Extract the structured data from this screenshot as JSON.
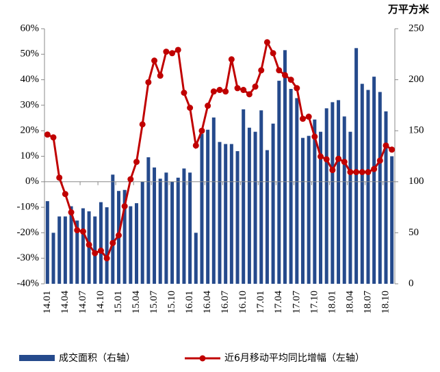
{
  "chart_data": {
    "type": "bar-line",
    "y2_unit": "万平方米",
    "categories": [
      "14.01",
      null,
      null,
      "14.04",
      null,
      null,
      "14.07",
      null,
      null,
      "14.10",
      null,
      null,
      "15.01",
      null,
      null,
      "15.04",
      null,
      null,
      "15.07",
      null,
      null,
      "15.10",
      null,
      null,
      "16.01",
      null,
      null,
      "16.04",
      null,
      null,
      "16.07",
      null,
      null,
      "16.10",
      null,
      null,
      "17.01",
      null,
      null,
      "17.04",
      null,
      null,
      "17.07",
      null,
      null,
      "17.10",
      null,
      null,
      "18.01",
      null,
      null,
      "18.04",
      null,
      null,
      "18.07",
      null,
      null,
      "18.10",
      null
    ],
    "series": [
      {
        "name": "成交面积（右轴）",
        "type": "bar",
        "axis": "y2",
        "color": "#254a8c",
        "values": [
          81,
          50,
          66,
          66,
          76,
          62,
          74,
          71,
          66,
          80,
          75,
          107,
          91,
          92,
          76,
          79,
          100,
          124,
          114,
          103,
          109,
          100,
          104,
          113,
          109,
          50,
          147,
          151,
          163,
          139,
          137,
          137,
          130,
          171,
          153,
          149,
          170,
          131,
          157,
          199,
          229,
          191,
          182,
          143,
          145,
          161,
          149,
          172,
          178,
          180,
          164,
          149,
          231,
          196,
          190,
          203,
          188,
          169,
          125
        ]
      },
      {
        "name": "近6月移动平均同比增幅（左轴）",
        "type": "line",
        "axis": "y",
        "color": "#c00000",
        "values": [
          18.5,
          17.4,
          1.6,
          -4.8,
          -12,
          -19,
          -19.5,
          -24.7,
          -28,
          -27,
          -30,
          -24,
          -21,
          -9.6,
          1,
          7.8,
          22.5,
          39,
          47.5,
          41.6,
          51,
          50.4,
          51.7,
          34.9,
          29,
          14.2,
          20,
          29.8,
          35.4,
          36,
          35.4,
          48,
          36.7,
          36,
          34.3,
          37.3,
          43.7,
          54.7,
          50.4,
          43.7,
          41.8,
          40,
          36.7,
          24.7,
          25.5,
          17.7,
          9.9,
          8.8,
          4.6,
          9,
          7.8,
          3.8,
          3.8,
          3.8,
          3.8,
          5,
          8.3,
          14.2,
          12.6
        ]
      }
    ],
    "ylim": [
      -40,
      60
    ],
    "yticks": [
      {
        "value": -40,
        "label": "-40%"
      },
      {
        "value": -30,
        "label": "-30%"
      },
      {
        "value": -20,
        "label": "-20%"
      },
      {
        "value": -10,
        "label": "-10%"
      },
      {
        "value": 0,
        "label": "0%"
      },
      {
        "value": 10,
        "label": "10%"
      },
      {
        "value": 20,
        "label": "20%"
      },
      {
        "value": 30,
        "label": "30%"
      },
      {
        "value": 40,
        "label": "40%"
      },
      {
        "value": 50,
        "label": "50%"
      },
      {
        "value": 60,
        "label": "60%"
      }
    ],
    "y2lim": [
      0,
      250
    ],
    "y2ticks": [
      0,
      50,
      100,
      150,
      200,
      250
    ]
  }
}
